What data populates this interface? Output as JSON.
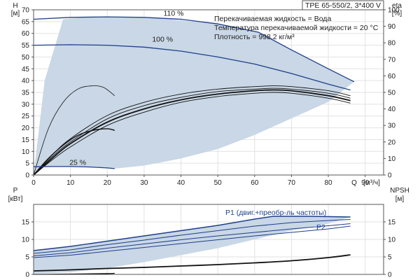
{
  "chart_data": [
    {
      "type": "line",
      "title": "TPE 65-550/2, 3*400 V",
      "info_lines": [
        "Перекачиваемая жидкость = Вода",
        "Температура перекачиваемой жидкости = 20 °C",
        "Плотность = 998.2 кг/м³"
      ],
      "xlabel": "Q [м³/ч]",
      "x_unit_symbol": "Q",
      "x_unit": "[м³/ч]",
      "ylabel": "H [м]",
      "y_symbol": "H",
      "y_unit": "[м]",
      "y2label": "eta [%]",
      "y2_symbol": "eta",
      "y2_unit": "[%]",
      "xlim": [
        0,
        95
      ],
      "ylim": [
        0,
        70
      ],
      "y2lim": [
        0,
        100
      ],
      "x_ticks": [
        "0",
        "10",
        "20",
        "30",
        "40",
        "50",
        "60",
        "70",
        "80",
        "90"
      ],
      "y_ticks": [
        "0",
        "5",
        "10",
        "15",
        "20",
        "25",
        "30",
        "35",
        "40",
        "45",
        "50",
        "55",
        "60",
        "65",
        "70"
      ],
      "y2_ticks": [
        "0",
        "10",
        "20",
        "30",
        "40",
        "50",
        "60",
        "70",
        "80",
        "90",
        "100"
      ],
      "grid": true,
      "head_curves": [
        {
          "name": "110 %",
          "x": [
            0,
            10,
            20,
            30,
            40,
            50,
            61,
            70,
            80,
            87
          ],
          "y": [
            66,
            66.8,
            67,
            66.8,
            66,
            64,
            60.5,
            53,
            45,
            39.5
          ]
        },
        {
          "name": "100 %",
          "x": [
            0,
            10,
            20,
            30,
            40,
            50,
            60,
            70,
            80,
            86
          ],
          "y": [
            55,
            55.2,
            55,
            54.2,
            52.5,
            50,
            47,
            43,
            38.5,
            36
          ]
        },
        {
          "name": "25 %",
          "x": [
            0,
            5,
            10,
            15,
            20,
            22
          ],
          "y": [
            3.5,
            3.6,
            3.6,
            3.4,
            3,
            2.7
          ]
        }
      ],
      "efficiency_curves": [
        {
          "x": [
            0,
            5,
            10,
            20,
            30,
            40,
            50,
            60,
            65,
            70,
            80,
            86
          ],
          "y": [
            0,
            12,
            22,
            36,
            44,
            49,
            52,
            53.5,
            54,
            53.5,
            51,
            48
          ]
        },
        {
          "x": [
            0,
            5,
            10,
            20,
            30,
            40,
            50,
            60,
            65,
            70,
            80,
            86
          ],
          "y": [
            0,
            11,
            20,
            34,
            42,
            47,
            50.5,
            52,
            52.5,
            52,
            49.5,
            46.5
          ]
        },
        {
          "x": [
            0,
            5,
            10,
            20,
            30,
            40,
            50,
            60,
            65,
            70,
            80,
            86
          ],
          "y": [
            0,
            10,
            19,
            32,
            40,
            45.5,
            49,
            51,
            51.5,
            51,
            48,
            45
          ]
        },
        {
          "x": [
            0,
            5,
            10,
            20,
            30,
            40,
            50,
            60,
            65,
            70,
            80,
            86
          ],
          "y": [
            0,
            9,
            17,
            30,
            38,
            44,
            47.5,
            49.5,
            50,
            49.5,
            46.5,
            43.5
          ]
        },
        {
          "x": [
            0,
            4,
            8,
            12,
            16,
            19,
            22
          ],
          "y": [
            0,
            28,
            44,
            52,
            54,
            53,
            48
          ]
        },
        {
          "x": [
            0,
            4,
            8,
            12,
            16,
            20,
            22
          ],
          "y": [
            0,
            10,
            18,
            24,
            27,
            28,
            27
          ]
        }
      ],
      "operating_range": {
        "x": [
          0,
          3,
          8,
          15,
          25,
          35,
          50,
          61,
          70,
          80,
          87,
          80,
          70,
          60,
          50,
          40,
          30,
          22,
          15,
          8,
          3,
          0
        ],
        "y": [
          0,
          40,
          66,
          67,
          66.8,
          66.3,
          64,
          60.5,
          53,
          45,
          39.5,
          31,
          24,
          17,
          11,
          7,
          4,
          2.7,
          3.4,
          3.6,
          3.55,
          0
        ]
      }
    },
    {
      "type": "line",
      "ylabel": "P [кВт]",
      "y_symbol": "P",
      "y_unit": "[кВт]",
      "y2label": "NPSH [м]",
      "y2_symbol": "NPSH",
      "y2_unit": "[м]",
      "xlim": [
        0,
        95
      ],
      "ylim": [
        0,
        20
      ],
      "y2lim": [
        0,
        20
      ],
      "y_ticks": [
        "0",
        "5",
        "10",
        "15"
      ],
      "y2_ticks": [
        "0",
        "5",
        "10",
        "15"
      ],
      "grid": true,
      "series_labels": [
        "P1 (двиг.+преобр-ль частоты)",
        "P2"
      ],
      "power_curves": [
        {
          "x": [
            0,
            10,
            20,
            30,
            40,
            50,
            60,
            65,
            75,
            86
          ],
          "y": [
            6.8,
            8,
            9.5,
            11,
            12.5,
            14,
            15.8,
            16.6,
            16.6,
            16.4
          ]
        },
        {
          "x": [
            0,
            10,
            20,
            30,
            40,
            50,
            60,
            70,
            80,
            86
          ],
          "y": [
            6,
            7,
            8.5,
            9.8,
            11.2,
            12.5,
            13.8,
            14.8,
            15.4,
            15.7
          ]
        },
        {
          "x": [
            0,
            10,
            20,
            30,
            40,
            50,
            60,
            70,
            80,
            86
          ],
          "y": [
            5.3,
            6.2,
            7.5,
            8.7,
            9.9,
            11,
            12,
            13,
            13.9,
            14.5
          ]
        },
        {
          "x": [
            0,
            10,
            20,
            30,
            40,
            50,
            60,
            70,
            80,
            86
          ],
          "y": [
            4.8,
            5.5,
            6.6,
            7.7,
            8.8,
            9.9,
            11,
            12,
            13,
            13.8
          ]
        }
      ],
      "npsh_curves": [
        {
          "x": [
            0,
            10,
            20,
            30,
            40,
            50,
            60,
            70,
            80,
            86
          ],
          "y": [
            1,
            1.3,
            1.7,
            2,
            2.4,
            2.8,
            3.3,
            3.9,
            4.8,
            5.6
          ]
        },
        {
          "x": [
            0,
            10,
            20,
            22
          ],
          "y": [
            0,
            0.1,
            0.25,
            0.3
          ]
        }
      ],
      "operating_range": {
        "x": [
          0,
          10,
          20,
          30,
          40,
          50,
          60,
          65,
          75,
          86,
          80,
          70,
          60,
          50,
          40,
          30,
          20,
          10,
          0
        ],
        "y": [
          6.8,
          8,
          9.5,
          11,
          12.5,
          14,
          15.8,
          16.6,
          16.6,
          16.4,
          14.5,
          12.5,
          10,
          7.5,
          5.5,
          3.5,
          1.8,
          0.6,
          0.2
        ]
      }
    }
  ]
}
